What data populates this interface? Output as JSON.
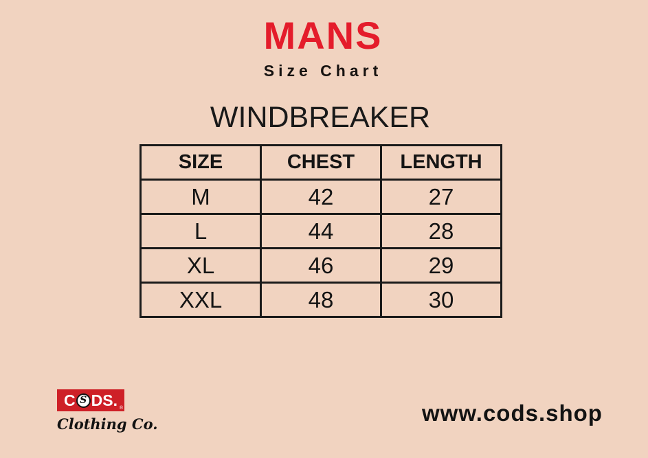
{
  "page": {
    "background_color": "#F1D3C0",
    "accent_red": "#E41C2B"
  },
  "header": {
    "title": "MANS",
    "subtitle": "Size Chart"
  },
  "section": {
    "product_title": "WINDBREAKER"
  },
  "size_table": {
    "columns": [
      "SIZE",
      "CHEST",
      "LENGTH"
    ],
    "rows": [
      [
        "M",
        "42",
        "27"
      ],
      [
        "L",
        "44",
        "28"
      ],
      [
        "XL",
        "46",
        "29"
      ],
      [
        "XXL",
        "48",
        "30"
      ]
    ]
  },
  "footer": {
    "logo": {
      "brand": "CODS",
      "brand_prefix": "C",
      "o_mark_letter": "S",
      "brand_suffix": "DS.",
      "registered_mark": "®",
      "tagline": "Clothing Co.",
      "box_color": "#CE2027"
    },
    "website": "www.cods.shop"
  }
}
